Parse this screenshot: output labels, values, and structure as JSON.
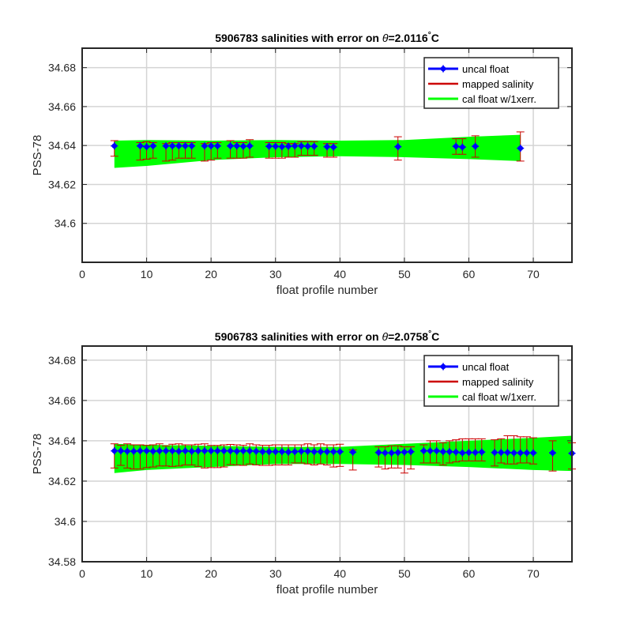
{
  "colors": {
    "uncal": "#0000ff",
    "mapped": "#cc0000",
    "cal_band": "#00ff00",
    "grid": "#d4d4d4",
    "axes": "#262626"
  },
  "chart_data": [
    {
      "type": "scatter",
      "title_prefix": "5906783 salinities with error on ",
      "title_symbol": "θ",
      "title_suffix": "=2.0116",
      "title_degree": "°",
      "title_unit": "C",
      "xlabel": "float profile number",
      "ylabel": "PSS-78",
      "xlim": [
        0,
        76
      ],
      "ylim": [
        34.58,
        34.69
      ],
      "xticks": [
        "0",
        "10",
        "20",
        "30",
        "40",
        "50",
        "60",
        "70"
      ],
      "yticks": [
        "34.6",
        "34.62",
        "34.64",
        "34.66",
        "34.68"
      ],
      "grid": true,
      "legend_position": "top-right",
      "legend": [
        "uncal float",
        "mapped salinity",
        "cal float w/1xerr."
      ],
      "series": [
        {
          "name": "uncal float",
          "x": [
            5,
            9,
            10,
            11,
            13,
            14,
            15,
            16,
            17,
            19,
            20,
            21,
            23,
            24,
            25,
            26,
            29,
            30,
            31,
            32,
            33,
            34,
            35,
            36,
            38,
            39,
            49,
            58,
            59,
            61,
            68
          ],
          "y": [
            34.6398,
            34.6398,
            34.6394,
            34.6398,
            34.6398,
            34.6398,
            34.6398,
            34.6398,
            34.6398,
            34.6398,
            34.6398,
            34.6398,
            34.6398,
            34.6398,
            34.6396,
            34.6398,
            34.6396,
            34.6396,
            34.6394,
            34.6396,
            34.6398,
            34.6398,
            34.6396,
            34.6396,
            34.6394,
            34.6392,
            34.6394,
            34.6396,
            34.6392,
            34.6396,
            34.6386
          ]
        },
        {
          "name": "mapped salinity",
          "x": [
            5,
            9,
            10,
            11,
            13,
            14,
            15,
            16,
            17,
            19,
            20,
            21,
            23,
            24,
            25,
            26,
            29,
            30,
            31,
            32,
            33,
            34,
            35,
            36,
            38,
            39,
            49,
            58,
            59,
            61,
            68
          ],
          "y": [
            34.6385,
            34.637,
            34.6375,
            34.6375,
            34.6365,
            34.637,
            34.6375,
            34.6375,
            34.6375,
            34.6365,
            34.637,
            34.6375,
            34.638,
            34.6375,
            34.6375,
            34.6385,
            34.6375,
            34.6375,
            34.6375,
            34.6375,
            34.6375,
            34.6385,
            34.6385,
            34.6385,
            34.6375,
            34.6375,
            34.6385,
            34.6395,
            34.6395,
            34.6395,
            34.6395
          ],
          "err": [
            0.004,
            0.0045,
            0.0045,
            0.004,
            0.0045,
            0.0045,
            0.004,
            0.004,
            0.004,
            0.0045,
            0.0045,
            0.004,
            0.0045,
            0.004,
            0.004,
            0.0045,
            0.004,
            0.004,
            0.004,
            0.0035,
            0.0035,
            0.0035,
            0.0035,
            0.0035,
            0.0035,
            0.0035,
            0.006,
            0.004,
            0.004,
            0.0055,
            0.0075
          ]
        },
        {
          "name": "cal float w/1xerr.",
          "x": [
            5,
            10,
            20,
            30,
            40,
            50,
            60,
            68
          ],
          "upper": [
            34.6425,
            34.6428,
            34.6425,
            34.6428,
            34.6425,
            34.6428,
            34.6445,
            34.6455
          ],
          "lower": [
            34.6285,
            34.6295,
            34.6325,
            34.634,
            34.6345,
            34.634,
            34.633,
            34.632
          ]
        }
      ]
    },
    {
      "type": "scatter",
      "title_prefix": "5906783 salinities with error on ",
      "title_symbol": "θ",
      "title_suffix": "=2.0758",
      "title_degree": "°",
      "title_unit": "C",
      "xlabel": "float profile number",
      "ylabel": "PSS-78",
      "xlim": [
        0,
        76
      ],
      "ylim": [
        34.58,
        34.687
      ],
      "xticks": [
        "0",
        "10",
        "20",
        "30",
        "40",
        "50",
        "60",
        "70"
      ],
      "yticks": [
        "34.58",
        "34.6",
        "34.62",
        "34.64",
        "34.66",
        "34.68"
      ],
      "grid": true,
      "legend_position": "top-right",
      "legend": [
        "uncal float",
        "mapped salinity",
        "cal float w/1xerr."
      ],
      "series": [
        {
          "name": "uncal float",
          "x": [
            5,
            6,
            7,
            8,
            9,
            10,
            11,
            12,
            13,
            14,
            15,
            16,
            17,
            18,
            19,
            20,
            21,
            22,
            23,
            24,
            25,
            26,
            27,
            28,
            29,
            30,
            31,
            32,
            33,
            34,
            35,
            36,
            37,
            38,
            39,
            40,
            42,
            46,
            47,
            48,
            49,
            50,
            51,
            53,
            54,
            55,
            56,
            57,
            58,
            59,
            60,
            61,
            62,
            64,
            65,
            66,
            67,
            68,
            69,
            70,
            73,
            76
          ],
          "y": [
            34.635,
            34.635,
            34.6348,
            34.6348,
            34.635,
            34.635,
            34.6348,
            34.635,
            34.635,
            34.635,
            34.6348,
            34.635,
            34.6348,
            34.635,
            34.635,
            34.635,
            34.635,
            34.635,
            34.635,
            34.6348,
            34.635,
            34.635,
            34.6348,
            34.6346,
            34.6346,
            34.6346,
            34.6346,
            34.6344,
            34.6346,
            34.6348,
            34.6348,
            34.6346,
            34.6346,
            34.6346,
            34.6346,
            34.6346,
            34.6344,
            34.6342,
            34.634,
            34.634,
            34.6342,
            34.6344,
            34.6346,
            34.635,
            34.635,
            34.635,
            34.6346,
            34.6346,
            34.6344,
            34.634,
            34.6342,
            34.6342,
            34.6344,
            34.6342,
            34.6342,
            34.6342,
            34.634,
            34.634,
            34.634,
            34.634,
            34.634,
            34.6338
          ]
        },
        {
          "name": "mapped salinity",
          "x": [
            5,
            6,
            7,
            8,
            9,
            10,
            11,
            12,
            13,
            14,
            15,
            16,
            17,
            18,
            19,
            20,
            21,
            22,
            23,
            24,
            25,
            26,
            27,
            28,
            29,
            30,
            31,
            32,
            33,
            34,
            35,
            36,
            37,
            38,
            39,
            40,
            42,
            46,
            47,
            48,
            49,
            50,
            51,
            53,
            54,
            55,
            56,
            57,
            58,
            59,
            60,
            61,
            62,
            64,
            65,
            66,
            67,
            68,
            69,
            70,
            73,
            76
          ],
          "y": [
            34.6325,
            34.6328,
            34.6325,
            34.632,
            34.632,
            34.6322,
            34.6325,
            34.633,
            34.6325,
            34.6328,
            34.633,
            34.633,
            34.633,
            34.6328,
            34.6325,
            34.6322,
            34.6322,
            34.6325,
            34.6332,
            34.633,
            34.6328,
            34.6335,
            34.633,
            34.6328,
            34.6328,
            34.633,
            34.633,
            34.633,
            34.6335,
            34.6335,
            34.6335,
            34.633,
            34.6335,
            34.633,
            34.6325,
            34.6328,
            34.6305,
            34.632,
            34.6315,
            34.632,
            34.632,
            34.6305,
            34.6315,
            34.6335,
            34.6345,
            34.6345,
            34.6335,
            34.6345,
            34.635,
            34.6355,
            34.6355,
            34.6355,
            34.6355,
            34.634,
            34.635,
            34.6355,
            34.6355,
            34.6355,
            34.6355,
            34.635,
            34.6325,
            34.6325
          ],
          "err": [
            0.006,
            0.005,
            0.006,
            0.006,
            0.006,
            0.0055,
            0.0055,
            0.0055,
            0.005,
            0.0055,
            0.0055,
            0.005,
            0.005,
            0.0055,
            0.006,
            0.0055,
            0.0055,
            0.0055,
            0.005,
            0.005,
            0.005,
            0.005,
            0.005,
            0.005,
            0.005,
            0.005,
            0.005,
            0.005,
            0.0045,
            0.0045,
            0.005,
            0.005,
            0.005,
            0.005,
            0.0055,
            0.0055,
            0.005,
            0.005,
            0.0055,
            0.0055,
            0.0055,
            0.0065,
            0.0055,
            0.0045,
            0.0055,
            0.0055,
            0.0055,
            0.0055,
            0.0055,
            0.0055,
            0.0055,
            0.0055,
            0.0055,
            0.0065,
            0.006,
            0.007,
            0.007,
            0.0065,
            0.0065,
            0.0065,
            0.0075,
            0.0065
          ]
        },
        {
          "name": "cal float w/1xerr.",
          "x": [
            5,
            10,
            20,
            30,
            40,
            50,
            60,
            70,
            76
          ],
          "upper": [
            34.6385,
            34.638,
            34.6375,
            34.637,
            34.637,
            34.6385,
            34.64,
            34.6415,
            34.6425
          ],
          "lower": [
            34.624,
            34.6255,
            34.627,
            34.6285,
            34.6285,
            34.628,
            34.627,
            34.6255,
            34.625
          ]
        }
      ]
    }
  ]
}
